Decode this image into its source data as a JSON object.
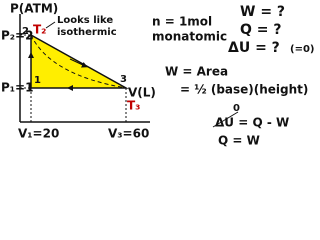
{
  "diagram": {
    "axis_labels": {
      "y": "P(ATM)",
      "x": "V(L)"
    },
    "ticks": {
      "p2": "P₂=2",
      "p1": "P₁=1",
      "v1": "V₁=20",
      "v3": "V₃=60"
    },
    "points": [
      "1",
      "2",
      "3"
    ],
    "temps": [
      "T₂",
      "T₃"
    ],
    "annotation": [
      "Looks like",
      "isothermic"
    ]
  },
  "notes": {
    "gas": [
      "n = 1mol",
      "monatomic"
    ],
    "unknowns": [
      "W = ?",
      "Q = ?",
      "ΔU = ?"
    ],
    "du_hint": "(=0)",
    "work": [
      "W = Area",
      "= ½ (base)(height)"
    ],
    "first_law_zero": "0",
    "first_law": "ΔU = Q - W",
    "result": "Q = W"
  }
}
